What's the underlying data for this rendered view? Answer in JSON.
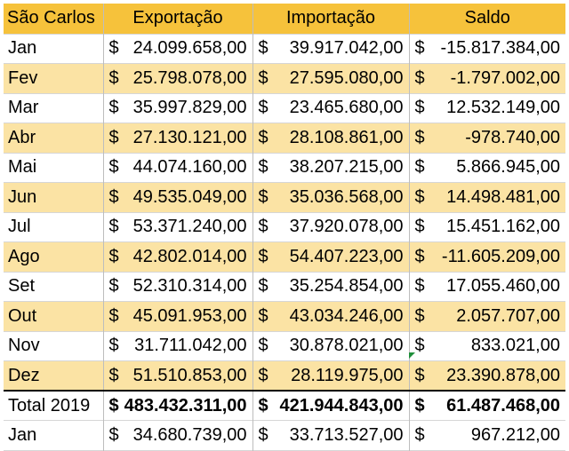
{
  "header": {
    "city": "São Carlos",
    "columns": [
      "Exportação",
      "Importação",
      "Saldo"
    ]
  },
  "currency_symbol": "$",
  "rows": [
    {
      "month": "Jan",
      "exportacao": "24.099.658,00",
      "importacao": "39.917.042,00",
      "saldo": "-15.817.384,00"
    },
    {
      "month": "Fev",
      "exportacao": "25.798.078,00",
      "importacao": "27.595.080,00",
      "saldo": "-1.797.002,00"
    },
    {
      "month": "Mar",
      "exportacao": "35.997.829,00",
      "importacao": "23.465.680,00",
      "saldo": "12.532.149,00"
    },
    {
      "month": "Abr",
      "exportacao": "27.130.121,00",
      "importacao": "28.108.861,00",
      "saldo": "-978.740,00"
    },
    {
      "month": "Mai",
      "exportacao": "44.074.160,00",
      "importacao": "38.207.215,00",
      "saldo": "5.866.945,00"
    },
    {
      "month": "Jun",
      "exportacao": "49.535.049,00",
      "importacao": "35.036.568,00",
      "saldo": "14.498.481,00"
    },
    {
      "month": "Jul",
      "exportacao": "53.371.240,00",
      "importacao": "37.920.078,00",
      "saldo": "15.451.162,00"
    },
    {
      "month": "Ago",
      "exportacao": "42.802.014,00",
      "importacao": "54.407.223,00",
      "saldo": "-11.605.209,00"
    },
    {
      "month": "Set",
      "exportacao": "52.310.314,00",
      "importacao": "35.254.854,00",
      "saldo": "17.055.460,00"
    },
    {
      "month": "Out",
      "exportacao": "45.091.953,00",
      "importacao": "43.034.246,00",
      "saldo": "2.057.707,00"
    },
    {
      "month": "Nov",
      "exportacao": "31.711.042,00",
      "importacao": "30.878.021,00",
      "saldo": "833.021,00"
    },
    {
      "month": "Dez",
      "exportacao": "51.510.853,00",
      "importacao": "28.119.975,00",
      "saldo": "23.390.878,00"
    }
  ],
  "total": {
    "label": "Total 2019",
    "exportacao": "483.432.311,00",
    "importacao": "421.944.843,00",
    "saldo": "61.487.468,00"
  },
  "next_row": {
    "month": "Jan",
    "exportacao": "34.680.739,00",
    "importacao": "33.713.527,00",
    "saldo": "967.212,00"
  },
  "colors": {
    "header": "#f6c23b",
    "band": "#fbe3a4",
    "comment_flag": "#1f8f3a"
  }
}
